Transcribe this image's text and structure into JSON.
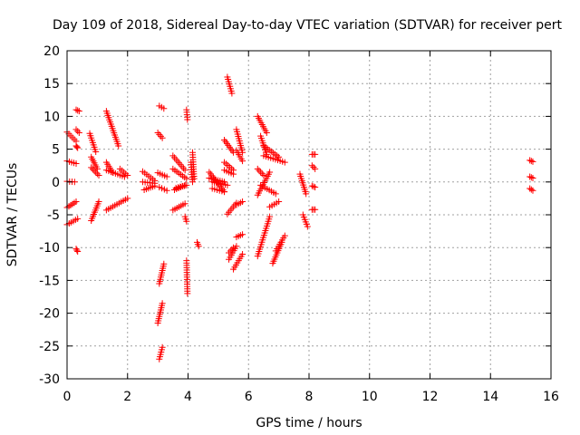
{
  "chart_data": {
    "type": "scatter",
    "title": "Day 109 of 2018, Sidereal Day-to-day VTEC variation (SDTVAR) for receiver pert",
    "xlabel": "GPS time / hours",
    "ylabel": "SDTVAR / TECUs",
    "xlim": [
      0,
      16
    ],
    "ylim": [
      -30,
      20
    ],
    "xticks": [
      "0",
      "2",
      "4",
      "6",
      "8",
      "10",
      "12",
      "14",
      "16"
    ],
    "yticks": [
      "20",
      "15",
      "10",
      "5",
      "0",
      "-5",
      "-10",
      "-15",
      "-20",
      "-25",
      "-30"
    ],
    "grid": true,
    "marker": "+",
    "color": "#ff0000",
    "segments": [
      [
        0.0,
        7.6,
        0.3,
        6.2
      ],
      [
        0.0,
        3.2,
        0.3,
        2.8
      ],
      [
        0.0,
        0.1,
        0.25,
        0.0
      ],
      [
        0.0,
        -3.9,
        0.3,
        -3.0
      ],
      [
        0.0,
        -6.5,
        0.35,
        -5.6
      ],
      [
        0.3,
        11.0,
        0.4,
        10.8
      ],
      [
        0.3,
        8.0,
        0.4,
        7.5
      ],
      [
        0.3,
        5.5,
        0.35,
        5.2
      ],
      [
        0.3,
        -10.2,
        0.35,
        -10.6
      ],
      [
        0.75,
        7.4,
        0.95,
        4.6
      ],
      [
        0.8,
        3.8,
        1.0,
        2.0
      ],
      [
        0.8,
        2.2,
        1.05,
        1.0
      ],
      [
        0.8,
        -5.9,
        1.05,
        -3.0
      ],
      [
        1.3,
        10.8,
        1.7,
        5.5
      ],
      [
        1.3,
        3.0,
        1.5,
        1.5
      ],
      [
        1.3,
        1.8,
        1.9,
        0.8
      ],
      [
        1.3,
        -4.3,
        2.0,
        -2.5
      ],
      [
        1.75,
        2.0,
        2.0,
        1.0
      ],
      [
        2.5,
        1.6,
        2.9,
        0.2
      ],
      [
        2.5,
        0.0,
        2.9,
        -0.2
      ],
      [
        2.55,
        -1.2,
        2.9,
        -0.6
      ],
      [
        3.0,
        7.5,
        3.15,
        6.7
      ],
      [
        3.0,
        -21.5,
        3.15,
        -18.5
      ],
      [
        3.05,
        11.6,
        3.2,
        11.2
      ],
      [
        3.0,
        1.4,
        3.3,
        0.8
      ],
      [
        3.05,
        -0.8,
        3.3,
        -1.3
      ],
      [
        3.05,
        -15.5,
        3.2,
        -12.5
      ],
      [
        3.05,
        -27.0,
        3.15,
        -25.2
      ],
      [
        3.5,
        4.0,
        3.9,
        1.8
      ],
      [
        3.5,
        2.0,
        3.95,
        0.5
      ],
      [
        3.5,
        -4.3,
        3.9,
        -3.3
      ],
      [
        3.55,
        -1.2,
        3.9,
        -0.5
      ],
      [
        3.6,
        -0.9,
        3.95,
        -0.5
      ],
      [
        3.9,
        -5.3,
        3.95,
        -6.0
      ],
      [
        3.95,
        11.0,
        3.98,
        9.5
      ],
      [
        3.95,
        -12.0,
        3.98,
        -17.0
      ],
      [
        4.1,
        3.0,
        4.15,
        0.0
      ],
      [
        4.15,
        4.5,
        4.2,
        0.5
      ],
      [
        4.3,
        -9.2,
        4.35,
        -9.8
      ],
      [
        4.7,
        1.5,
        5.2,
        -1.5
      ],
      [
        4.7,
        0.6,
        5.2,
        0.0
      ],
      [
        4.8,
        0.0,
        5.3,
        -0.5
      ],
      [
        4.8,
        -1.0,
        5.2,
        -1.5
      ],
      [
        5.2,
        6.4,
        5.5,
        4.5
      ],
      [
        5.2,
        3.0,
        5.5,
        1.8
      ],
      [
        5.2,
        1.8,
        5.5,
        1.2
      ],
      [
        5.3,
        -4.9,
        5.6,
        -3.2
      ],
      [
        5.3,
        16.0,
        5.45,
        13.5
      ],
      [
        5.35,
        -10.8,
        5.5,
        -10.0
      ],
      [
        5.35,
        -11.8,
        5.6,
        -9.8
      ],
      [
        5.6,
        8.0,
        5.8,
        4.5
      ],
      [
        5.6,
        4.8,
        5.8,
        3.2
      ],
      [
        5.5,
        -13.3,
        5.8,
        -11.0
      ],
      [
        5.6,
        -8.4,
        5.8,
        -8.0
      ],
      [
        5.6,
        -3.5,
        5.8,
        -3.0
      ],
      [
        6.3,
        10.0,
        6.6,
        7.5
      ],
      [
        6.4,
        7.0,
        6.6,
        4.2
      ],
      [
        6.5,
        5.5,
        7.0,
        3.8
      ],
      [
        6.5,
        4.0,
        7.2,
        3.0
      ],
      [
        6.3,
        2.0,
        6.5,
        1.0
      ],
      [
        6.4,
        -0.5,
        6.9,
        -1.8
      ],
      [
        6.3,
        -2.0,
        6.7,
        1.5
      ],
      [
        6.3,
        -11.3,
        6.7,
        -5.3
      ],
      [
        6.7,
        -3.8,
        7.0,
        -3.0
      ],
      [
        6.8,
        -12.4,
        7.1,
        -9.2
      ],
      [
        6.9,
        -10.5,
        7.2,
        -8.2
      ],
      [
        7.7,
        1.2,
        7.9,
        -1.8
      ],
      [
        7.8,
        -5.0,
        7.95,
        -6.8
      ],
      [
        8.1,
        4.2,
        8.2,
        4.2
      ],
      [
        8.1,
        2.5,
        8.2,
        2.0
      ],
      [
        8.1,
        -0.6,
        8.2,
        -0.8
      ],
      [
        8.1,
        -4.2,
        8.2,
        -4.2
      ],
      [
        15.3,
        3.3,
        15.4,
        3.1
      ],
      [
        15.3,
        0.8,
        15.4,
        0.6
      ],
      [
        15.3,
        -1.0,
        15.4,
        -1.3
      ]
    ]
  }
}
